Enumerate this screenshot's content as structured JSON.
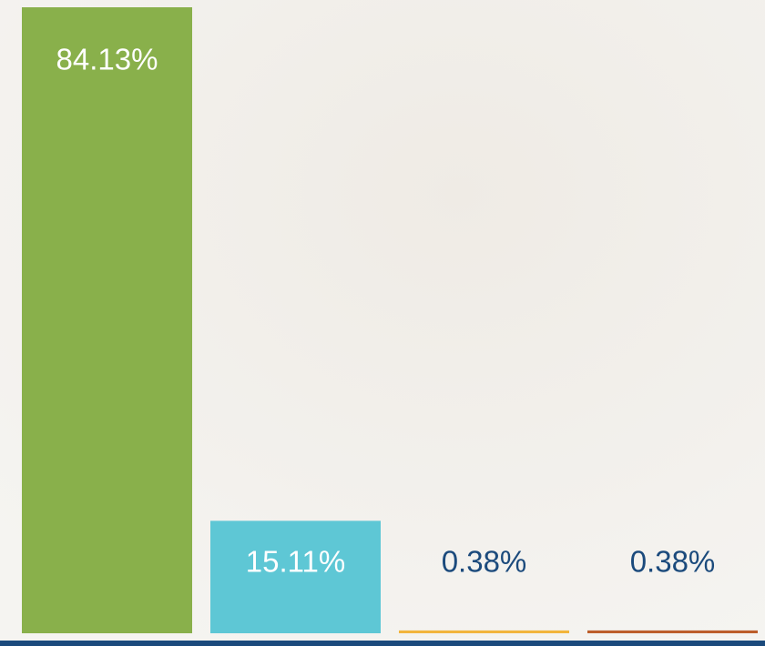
{
  "chart_data": {
    "type": "bar",
    "categories": [
      null,
      null,
      null,
      null
    ],
    "values": [
      84.13,
      15.11,
      0.38,
      0.38
    ],
    "value_labels": [
      "84.13%",
      "15.11%",
      "0.38%",
      "0.38%"
    ],
    "colors": [
      "#89b04b",
      "#5ec7d5",
      "#f2b53c",
      "#bd5e2b"
    ]
  }
}
